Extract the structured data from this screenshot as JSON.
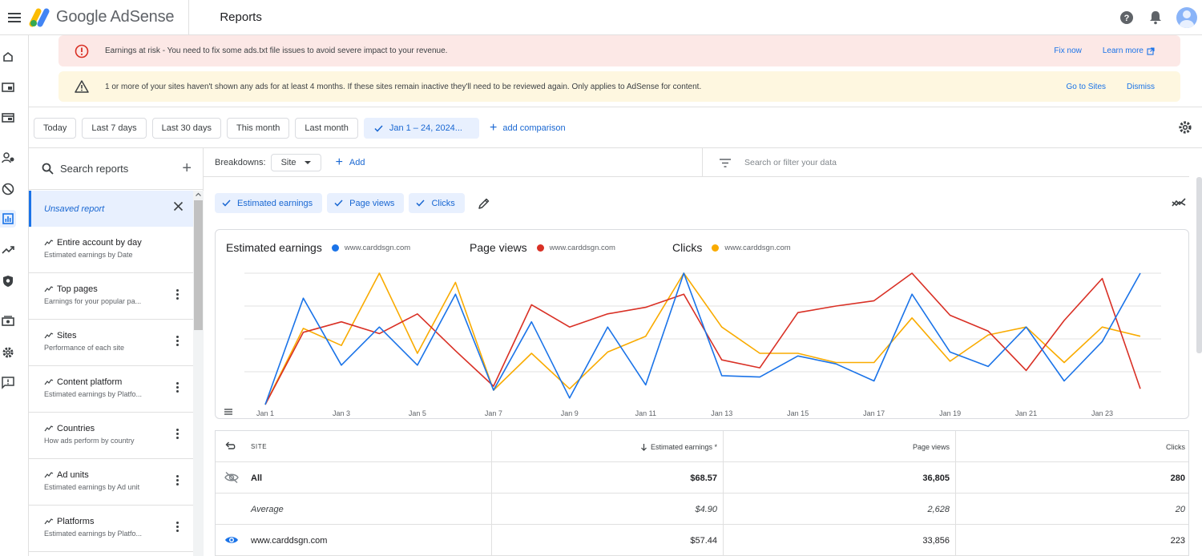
{
  "header": {
    "logo_text": "Google AdSense",
    "page_title": "Reports"
  },
  "alerts": {
    "risk": {
      "message": "Earnings at risk - You need to fix some ads.txt file issues to avoid severe impact to your revenue.",
      "fix_now": "Fix now",
      "learn_more": "Learn more"
    },
    "inactive": {
      "message": "1 or more of your sites haven't shown any ads for at least 4 months. If these sites remain inactive they'll need to be reviewed again. Only applies to AdSense for content.",
      "go_to_sites": "Go to Sites",
      "dismiss": "Dismiss"
    }
  },
  "date_filters": {
    "today": "Today",
    "last7": "Last 7 days",
    "last30": "Last 30 days",
    "this_month": "This month",
    "last_month": "Last month",
    "selected_range": "Jan 1 – 24, 2024...",
    "add_comparison": "add comparison"
  },
  "sidebar": {
    "search_placeholder": "Search reports",
    "unsaved": "Unsaved report",
    "reports": [
      {
        "title": "Entire account by day",
        "subtitle": "Estimated earnings by Date"
      },
      {
        "title": "Top pages",
        "subtitle": "Earnings for your popular pa..."
      },
      {
        "title": "Sites",
        "subtitle": "Performance of each site"
      },
      {
        "title": "Content platform",
        "subtitle": "Estimated earnings by Platfo..."
      },
      {
        "title": "Countries",
        "subtitle": "How ads perform by country"
      },
      {
        "title": "Ad units",
        "subtitle": "Estimated earnings by Ad unit"
      },
      {
        "title": "Platforms",
        "subtitle": "Estimated earnings by Platfo..."
      }
    ]
  },
  "breakdowns": {
    "label": "Breakdowns:",
    "site_chip": "Site",
    "add": "Add",
    "filter_placeholder": "Search or filter your data"
  },
  "metric_chips": {
    "earnings": "Estimated earnings",
    "page_views": "Page views",
    "clicks": "Clicks"
  },
  "chart_data": {
    "type": "line",
    "x": [
      "Jan 1",
      "Jan 2",
      "Jan 3",
      "Jan 4",
      "Jan 5",
      "Jan 6",
      "Jan 7",
      "Jan 8",
      "Jan 9",
      "Jan 10",
      "Jan 11",
      "Jan 12",
      "Jan 13",
      "Jan 14",
      "Jan 15",
      "Jan 16",
      "Jan 17",
      "Jan 18",
      "Jan 19",
      "Jan 20",
      "Jan 21",
      "Jan 22",
      "Jan 23",
      "Jan 24"
    ],
    "x_tick_labels": [
      "Jan 1",
      "Jan 3",
      "Jan 5",
      "Jan 7",
      "Jan 9",
      "Jan 11",
      "Jan 13",
      "Jan 15",
      "Jan 17",
      "Jan 19",
      "Jan 21",
      "Jan 23"
    ],
    "grid": true,
    "series": [
      {
        "name": "Estimated earnings",
        "site": "www.carddsgn.com",
        "color": "#1a73e8",
        "values": [
          0.0,
          0.81,
          0.3,
          0.59,
          0.3,
          0.84,
          0.11,
          0.63,
          0.05,
          0.59,
          0.15,
          1.0,
          0.22,
          0.21,
          0.37,
          0.31,
          0.18,
          0.84,
          0.4,
          0.29,
          0.59,
          0.18,
          0.48,
          1.0
        ]
      },
      {
        "name": "Page views",
        "site": "www.carddsgn.com",
        "color": "#d93025",
        "values": [
          0.0,
          0.55,
          0.63,
          0.54,
          0.69,
          0.41,
          0.14,
          0.76,
          0.59,
          0.69,
          0.74,
          0.84,
          0.34,
          0.28,
          0.7,
          0.75,
          0.79,
          1.0,
          0.68,
          0.56,
          0.26,
          0.64,
          0.96,
          0.12
        ]
      },
      {
        "name": "Clicks",
        "site": "www.carddsgn.com",
        "color": "#f9ab00",
        "values": [
          0.0,
          0.58,
          0.45,
          1.0,
          0.39,
          0.93,
          0.11,
          0.39,
          0.12,
          0.4,
          0.52,
          1.0,
          0.59,
          0.39,
          0.39,
          0.32,
          0.32,
          0.66,
          0.33,
          0.53,
          0.59,
          0.32,
          0.59,
          0.52
        ]
      }
    ]
  },
  "table": {
    "headers": {
      "site": "SITE",
      "earnings": "Estimated earnings *",
      "page_views": "Page views",
      "clicks": "Clicks"
    },
    "rows": [
      {
        "site": "All",
        "earnings": "$68.57",
        "page_views": "36,805",
        "clicks": "280"
      },
      {
        "site": "Average",
        "earnings": "$4.90",
        "page_views": "2,628",
        "clicks": "20"
      },
      {
        "site": "www.carddsgn.com",
        "earnings": "$57.44",
        "page_views": "33,856",
        "clicks": "223"
      }
    ]
  }
}
